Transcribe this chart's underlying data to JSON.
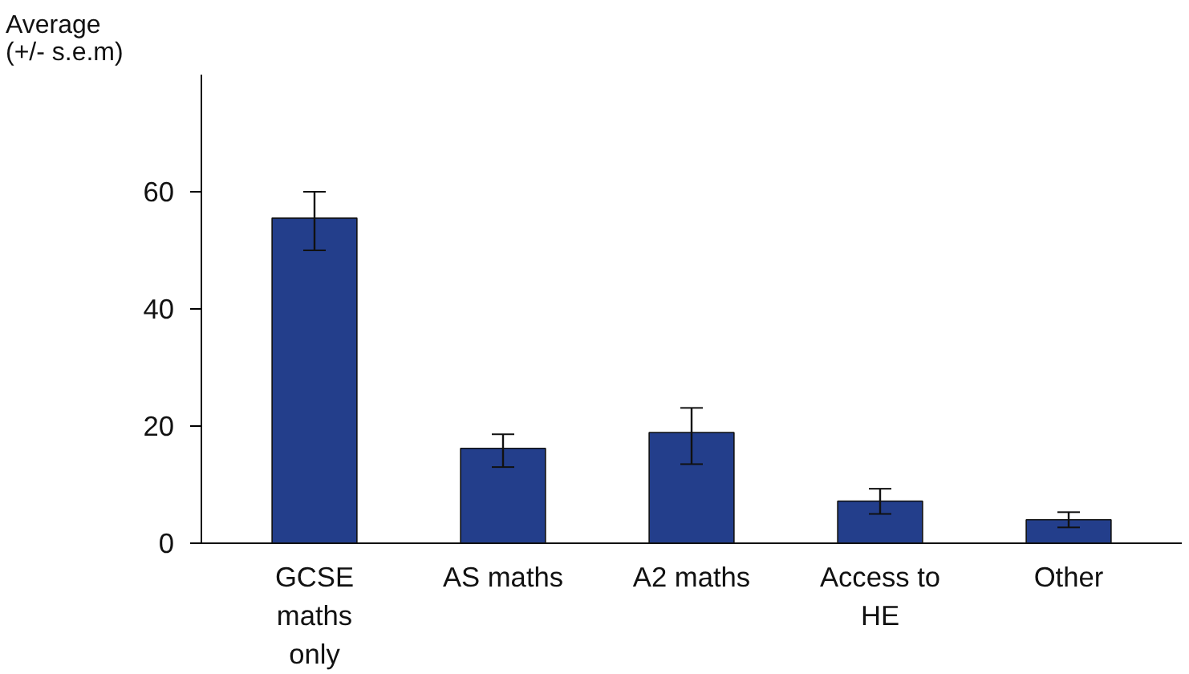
{
  "chart_data": {
    "type": "bar",
    "ylabel": "Average\n(+/- s.e.m)",
    "categories": [
      "GCSE maths only",
      "AS maths",
      "A2 maths",
      "Access to HE",
      "Other"
    ],
    "values": [
      55.5,
      16.2,
      18.9,
      7.2,
      4
    ],
    "errors": [
      [
        50,
        60
      ],
      [
        13,
        18.6
      ],
      [
        13.5,
        23.1
      ],
      [
        5,
        9.3
      ],
      [
        2.7,
        5.3
      ]
    ],
    "color": "#233e8b",
    "ylim": [
      0,
      80
    ],
    "yticks": [
      0,
      20,
      40,
      60
    ],
    "grid": false
  }
}
